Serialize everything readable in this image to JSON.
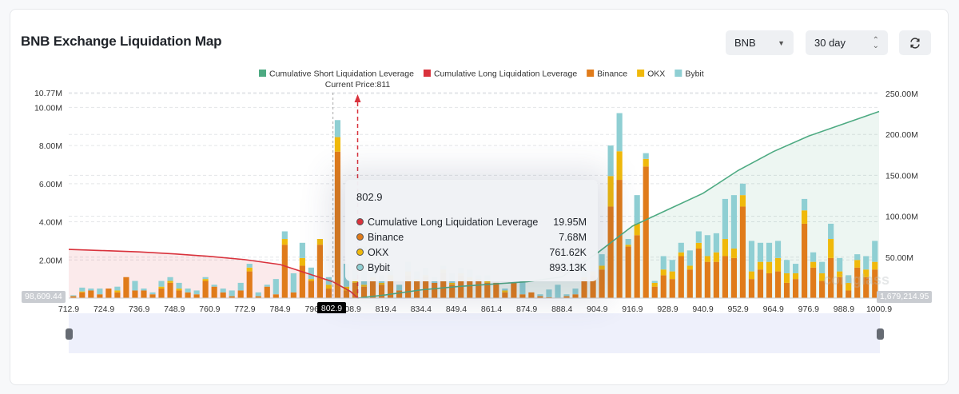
{
  "header": {
    "title": "BNB Exchange Liquidation Map",
    "symbol_select": "BNB",
    "range_select": "30 day",
    "refresh_icon": "refresh-icon"
  },
  "colors": {
    "short": "#4daa82",
    "long": "#d9323c",
    "binance": "#e07b1a",
    "okx": "#f0b90b",
    "bybit": "#8fcfd3"
  },
  "watermark": "coinglass",
  "chart_data": {
    "type": "bar",
    "legend_position": "top",
    "legend": [
      "Cumulative Short Liquidation Leverage",
      "Cumulative Long Liquidation Leverage",
      "Binance",
      "OKX",
      "Bybit"
    ],
    "current_price_label": "Current Price:811",
    "current_price": 811,
    "x_ticks": [
      "712.9",
      "724.9",
      "736.9",
      "748.9",
      "760.9",
      "772.9",
      "784.9",
      "796.9",
      "808.9",
      "819.4",
      "834.4",
      "849.4",
      "861.4",
      "874.9",
      "888.4",
      "904.9",
      "916.9",
      "928.9",
      "940.9",
      "952.9",
      "964.9",
      "976.9",
      "988.9",
      "1000.9"
    ],
    "highlight_x": "802.9",
    "y_left": {
      "ticks": [
        "2.00M",
        "4.00M",
        "6.00M",
        "8.00M",
        "10.00M",
        "10.77M"
      ],
      "values": [
        2,
        4,
        6,
        8,
        10,
        10.77
      ],
      "range": [
        0,
        10.77
      ],
      "unit": "M"
    },
    "y_right": {
      "ticks": [
        "50.00M",
        "100.00M",
        "150.00M",
        "200.00M",
        "250.00M"
      ],
      "values": [
        50,
        100,
        150,
        200,
        250
      ],
      "range": [
        0,
        250
      ],
      "unit": "M"
    },
    "range_min_label": "98,609.44",
    "range_max_label": "1,679,214.95",
    "grid": true,
    "stacked_bars_M": [
      [
        0.1,
        0,
        0.05
      ],
      [
        0.3,
        0.05,
        0.2
      ],
      [
        0.4,
        0,
        0.1
      ],
      [
        0.2,
        0,
        0.3
      ],
      [
        0.5,
        0,
        0
      ],
      [
        0.3,
        0.1,
        0.2
      ],
      [
        1.1,
        0,
        0
      ],
      [
        0.4,
        0,
        0.5
      ],
      [
        0.4,
        0,
        0.1
      ],
      [
        0.2,
        0,
        0.1
      ],
      [
        0.5,
        0.1,
        0.3
      ],
      [
        0.8,
        0.1,
        0.2
      ],
      [
        0.4,
        0.1,
        0.3
      ],
      [
        0.3,
        0,
        0.2
      ],
      [
        0.2,
        0,
        0.2
      ],
      [
        0.9,
        0.1,
        0.1
      ],
      [
        0.6,
        0,
        0.1
      ],
      [
        0.3,
        0,
        0.2
      ],
      [
        0.1,
        0,
        0.3
      ],
      [
        0.4,
        0,
        0.4
      ],
      [
        1.4,
        0.2,
        0.2
      ],
      [
        0.1,
        0,
        0.2
      ],
      [
        0.6,
        0,
        0.1
      ],
      [
        0.2,
        0,
        0.8
      ],
      [
        2.8,
        0.3,
        0.4
      ],
      [
        0.3,
        0,
        1.0
      ],
      [
        1.7,
        0.4,
        0.8
      ],
      [
        0.9,
        0.1,
        0.6
      ],
      [
        2.8,
        0.3,
        0
      ],
      [
        0.5,
        0.2,
        0.4
      ],
      [
        7.68,
        0.76162,
        0.89313
      ],
      [
        0.4,
        0.2,
        1.2
      ],
      [
        0.8,
        0.2,
        0.5
      ],
      [
        0.6,
        0.1,
        2.0
      ],
      [
        0.9,
        0.2,
        0.3
      ],
      [
        0.7,
        0.1,
        0.4
      ],
      [
        1.0,
        0.2,
        0.3
      ],
      [
        0.4,
        0,
        0.3
      ],
      [
        1.2,
        0.2,
        0.5
      ],
      [
        0.9,
        0.1,
        0.4
      ],
      [
        1.1,
        0.1,
        0.4
      ],
      [
        0.8,
        0,
        0.3
      ],
      [
        1.3,
        0.2,
        0.2
      ],
      [
        0.7,
        0.1,
        0.5
      ],
      [
        1.2,
        0.1,
        0.3
      ],
      [
        0.9,
        0.2,
        0.4
      ],
      [
        1.0,
        0,
        0.2
      ],
      [
        0.8,
        0.1,
        0.3
      ],
      [
        0.8,
        0,
        0
      ],
      [
        0.3,
        0.1,
        0.1
      ],
      [
        0.8,
        0,
        0
      ],
      [
        0.2,
        0,
        0.7
      ],
      [
        0.3,
        0,
        0
      ],
      [
        0.1,
        0,
        0.1
      ],
      [
        0.05,
        0,
        0.4
      ],
      [
        0,
        0,
        0.7
      ],
      [
        0.1,
        0,
        0.1
      ],
      [
        0.2,
        0,
        0.3
      ],
      [
        1.0,
        0.1,
        0.5
      ],
      [
        1.2,
        0.2,
        0.6
      ],
      [
        1.5,
        0.2,
        0.6
      ],
      [
        4.8,
        1.6,
        1.6
      ],
      [
        6.2,
        1.5,
        2.0
      ],
      [
        2.7,
        0.1,
        0.3
      ],
      [
        3.3,
        0.6,
        1.5
      ],
      [
        6.9,
        0.4,
        0.3
      ],
      [
        0.6,
        0.2,
        0.1
      ],
      [
        1.2,
        0.3,
        0.7
      ],
      [
        1.0,
        0.4,
        0.6
      ],
      [
        2.2,
        0.2,
        0.5
      ],
      [
        1.5,
        0.2,
        0.8
      ],
      [
        2.6,
        0.3,
        0.6
      ],
      [
        1.9,
        0.3,
        1.1
      ],
      [
        1.9,
        0.5,
        1.0
      ],
      [
        2.2,
        0.9,
        2.1
      ],
      [
        2.1,
        0.5,
        2.8
      ],
      [
        4.8,
        0.6,
        0.6
      ],
      [
        1.0,
        0.4,
        1.6
      ],
      [
        1.5,
        0.4,
        1.0
      ],
      [
        1.3,
        0.6,
        1.0
      ],
      [
        1.4,
        0.7,
        0.9
      ],
      [
        0.8,
        0.5,
        0.7
      ],
      [
        1.0,
        0.3,
        0.5
      ],
      [
        3.9,
        0.7,
        0.6
      ],
      [
        1.6,
        0.3,
        0.5
      ],
      [
        0.9,
        0.4,
        0.6
      ],
      [
        2.1,
        1.0,
        0.8
      ],
      [
        1.1,
        0.3,
        0.7
      ],
      [
        0.4,
        0.4,
        0.4
      ],
      [
        1.6,
        0.4,
        0.3
      ],
      [
        1.1,
        0.4,
        0.7
      ],
      [
        1.5,
        0.4,
        1.1
      ]
    ],
    "cumulative_long_M": [
      [
        712.9,
        59.5
      ],
      [
        724.9,
        58
      ],
      [
        736.9,
        56.5
      ],
      [
        748.9,
        54
      ],
      [
        760.9,
        51
      ],
      [
        772.9,
        47
      ],
      [
        784.9,
        41
      ],
      [
        796.9,
        27
      ],
      [
        802.9,
        19.95
      ],
      [
        808.9,
        8
      ],
      [
        811,
        0
      ]
    ],
    "cumulative_short_M": [
      [
        811,
        0
      ],
      [
        819.4,
        4
      ],
      [
        834.4,
        10
      ],
      [
        849.4,
        14
      ],
      [
        861.4,
        17
      ],
      [
        874.9,
        20
      ],
      [
        888.4,
        26
      ],
      [
        904.9,
        55
      ],
      [
        916.9,
        88
      ],
      [
        928.9,
        108
      ],
      [
        940.9,
        128
      ],
      [
        952.9,
        156
      ],
      [
        964.9,
        179
      ],
      [
        976.9,
        198
      ],
      [
        988.9,
        213
      ],
      [
        1000.9,
        228
      ]
    ]
  },
  "tooltip": {
    "title": "802.9",
    "rows": [
      {
        "label": "Cumulative Long Liquidation Leverage",
        "value": "19.95M",
        "color": "#d9323c"
      },
      {
        "label": "Binance",
        "value": "7.68M",
        "color": "#e07b1a"
      },
      {
        "label": "OKX",
        "value": "761.62K",
        "color": "#f0b90b"
      },
      {
        "label": "Bybit",
        "value": "893.13K",
        "color": "#8fcfd3"
      }
    ]
  }
}
